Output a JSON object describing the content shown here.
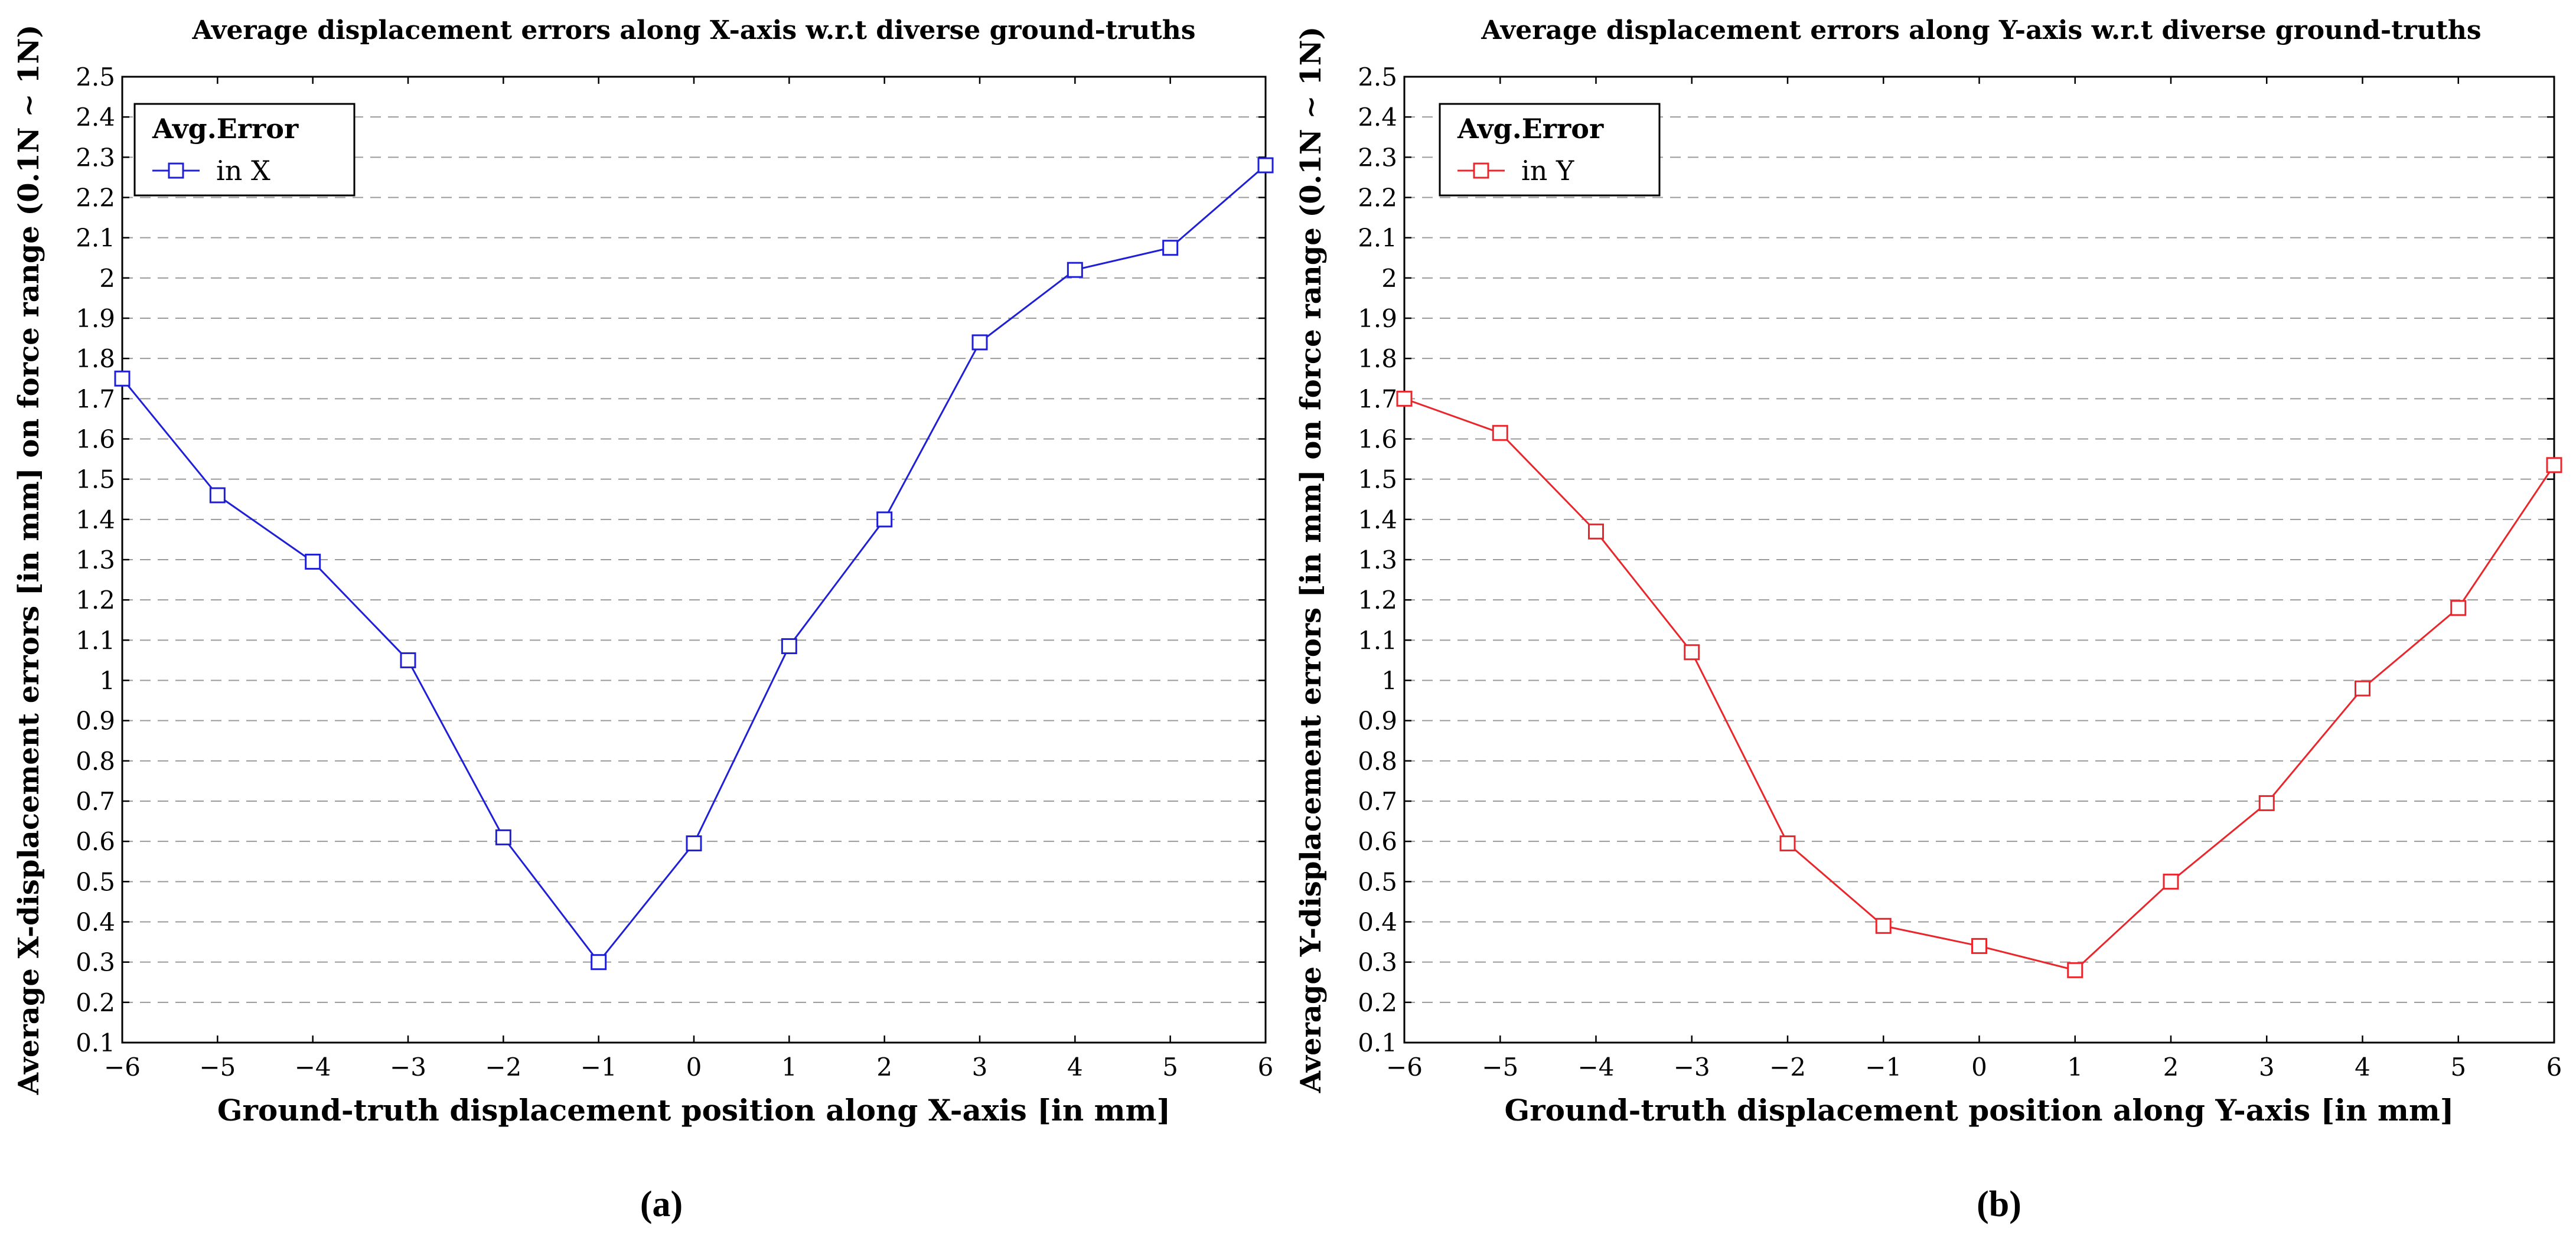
{
  "chart_data": [
    {
      "type": "line",
      "title": "Average displacement errors along X-axis w.r.t diverse ground-truths",
      "xlabel": "Ground-truth displacement position along X-axis [in mm]",
      "ylabel": "Average X-displacement errors [in mm] on force range (0.1N ∼ 1N)",
      "xlim": [
        -6,
        6
      ],
      "ylim": [
        0.1,
        2.5
      ],
      "grid": "horizontal-dashed",
      "legend_position": "top-left",
      "legend_title": "Avg.Error",
      "caption": "(a)",
      "x_ticks": [
        "−6",
        "−5",
        "−4",
        "−3",
        "−2",
        "−1",
        "0",
        "1",
        "2",
        "3",
        "4",
        "5",
        "6"
      ],
      "y_ticks": [
        "0.1",
        "0.2",
        "0.3",
        "0.4",
        "0.5",
        "0.6",
        "0.7",
        "0.8",
        "0.9",
        "1",
        "1.1",
        "1.2",
        "1.3",
        "1.4",
        "1.5",
        "1.6",
        "1.7",
        "1.8",
        "1.9",
        "2",
        "2.1",
        "2.2",
        "2.3",
        "2.4",
        "2.5"
      ],
      "x": [
        -6,
        -5,
        -4,
        -3,
        -2,
        -1,
        0,
        1,
        2,
        3,
        4,
        5,
        6
      ],
      "series": [
        {
          "name": "in X",
          "color": "#1f1fd6",
          "marker": "square",
          "values": [
            1.75,
            1.46,
            1.295,
            1.05,
            0.61,
            0.3,
            0.595,
            1.085,
            1.4,
            1.84,
            2.02,
            2.075,
            2.28
          ]
        }
      ]
    },
    {
      "type": "line",
      "title": "Average displacement errors along Y-axis w.r.t diverse ground-truths",
      "xlabel": "Ground-truth displacement position along Y-axis [in mm]",
      "ylabel": "Average Y-displacement errors [in mm] on force range (0.1N ∼ 1N)",
      "xlim": [
        -6,
        6
      ],
      "ylim": [
        0.1,
        2.5
      ],
      "grid": "horizontal-dashed",
      "legend_position": "top-left",
      "legend_title": "Avg.Error",
      "caption": "(b)",
      "x_ticks": [
        "−6",
        "−5",
        "−4",
        "−3",
        "−2",
        "−1",
        "0",
        "1",
        "2",
        "3",
        "4",
        "5",
        "6"
      ],
      "y_ticks": [
        "0.1",
        "0.2",
        "0.3",
        "0.4",
        "0.5",
        "0.6",
        "0.7",
        "0.8",
        "0.9",
        "1",
        "1.1",
        "1.2",
        "1.3",
        "1.4",
        "1.5",
        "1.6",
        "1.7",
        "1.8",
        "1.9",
        "2",
        "2.1",
        "2.2",
        "2.3",
        "2.4",
        "2.5"
      ],
      "x": [
        -6,
        -5,
        -4,
        -3,
        -2,
        -1,
        0,
        1,
        2,
        3,
        4,
        5,
        6
      ],
      "series": [
        {
          "name": "in Y",
          "color": "#e8262b",
          "marker": "square",
          "values": [
            1.7,
            1.615,
            1.37,
            1.07,
            0.595,
            0.39,
            0.34,
            0.28,
            0.5,
            0.695,
            0.98,
            1.18,
            1.535
          ]
        }
      ]
    }
  ]
}
